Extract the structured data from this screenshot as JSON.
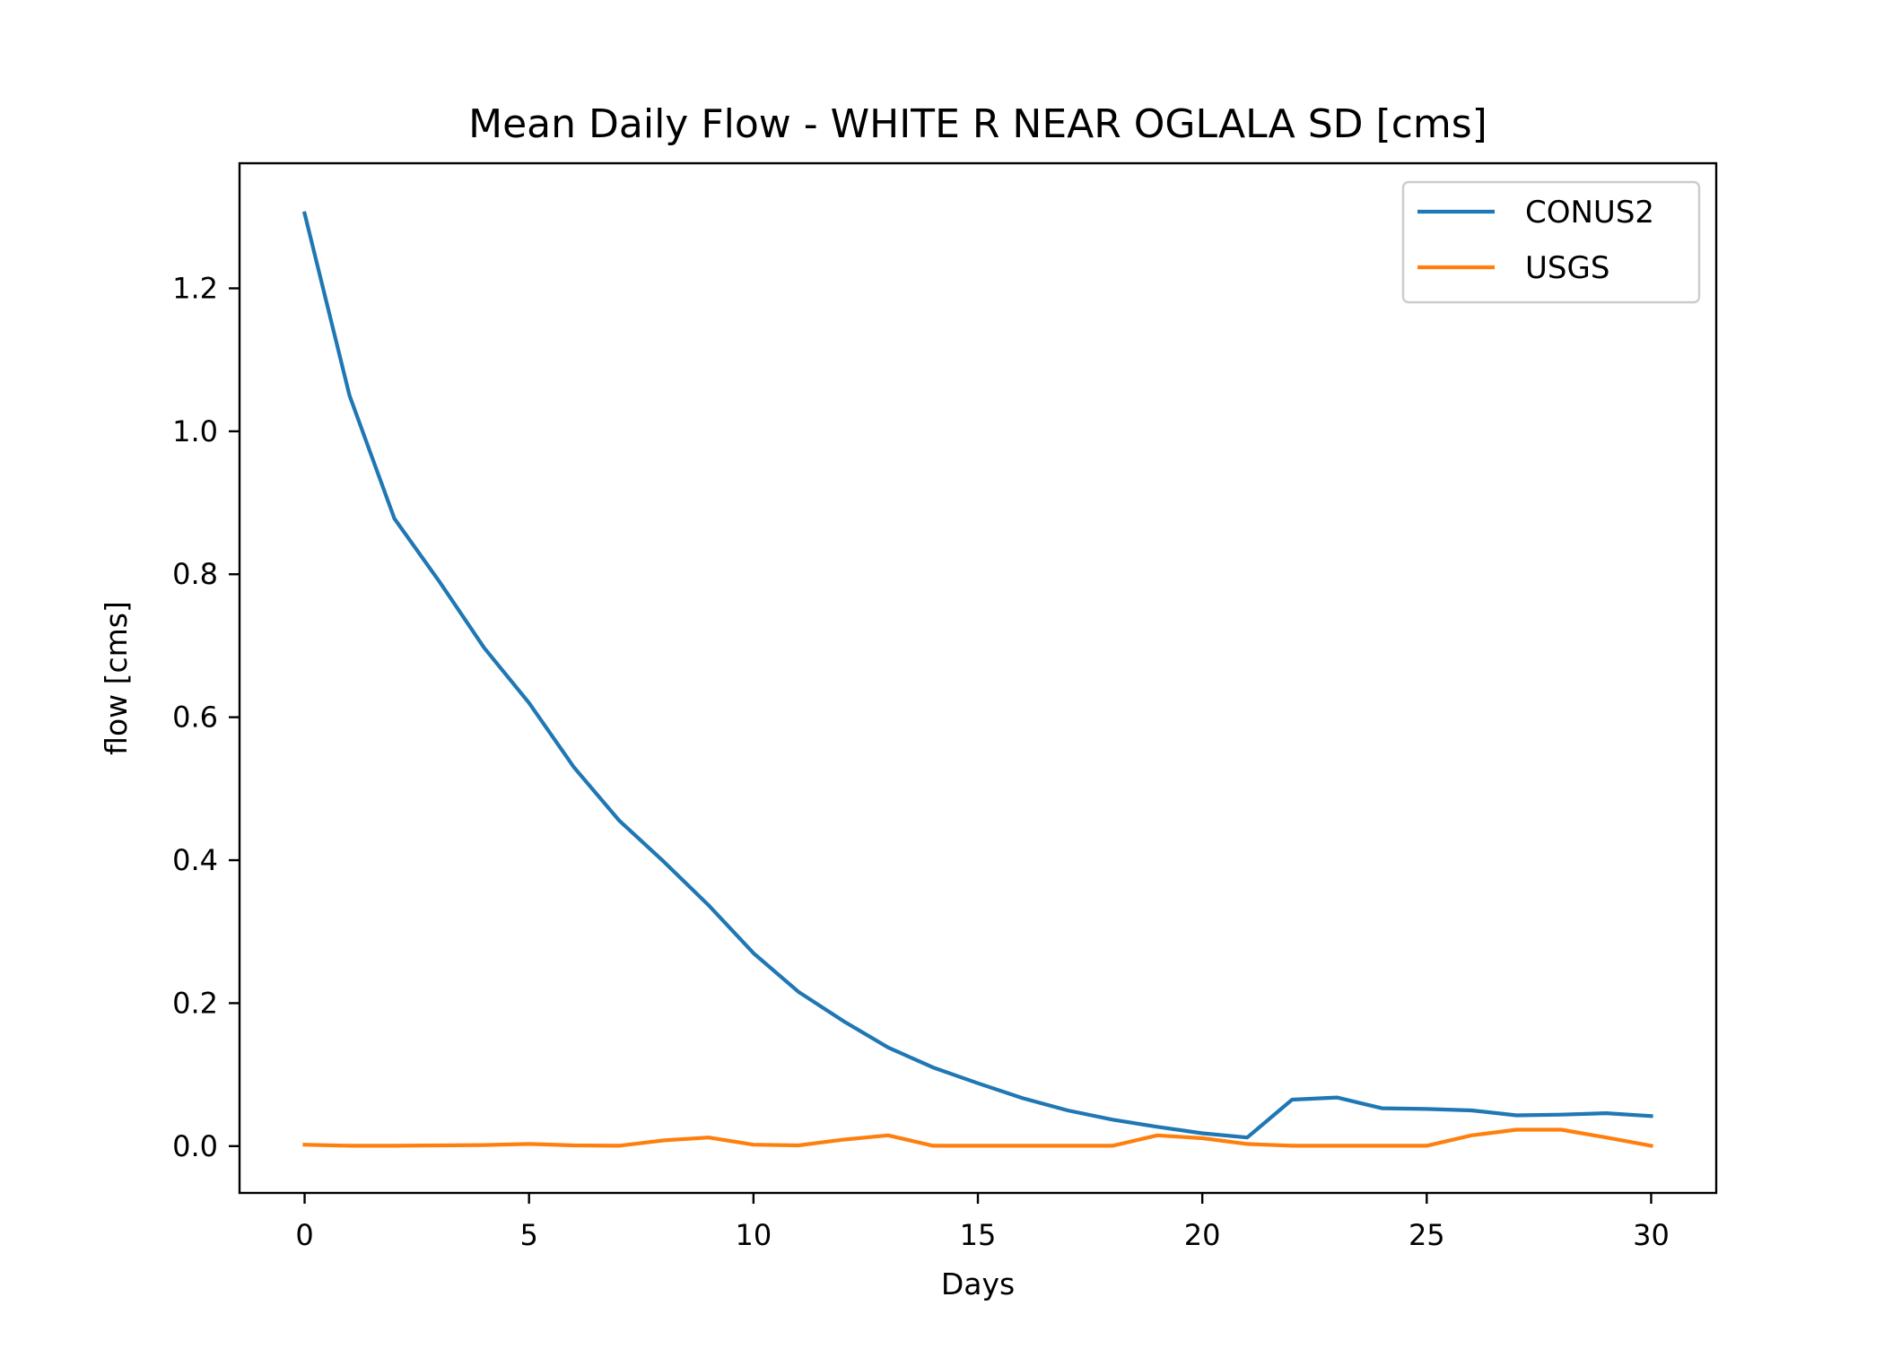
{
  "chart_data": {
    "type": "line",
    "title": "Mean Daily Flow - WHITE R NEAR OGLALA SD [cms]",
    "xlabel": "Days",
    "ylabel": "flow [cms]",
    "xlim": [
      -1.45,
      31.45
    ],
    "ylim": [
      -0.0655,
      1.375
    ],
    "xticks": [
      0,
      5,
      10,
      15,
      20,
      25,
      30
    ],
    "xtick_labels": [
      "0",
      "5",
      "10",
      "15",
      "20",
      "25",
      "30"
    ],
    "yticks": [
      0.0,
      0.2,
      0.4,
      0.6,
      0.8,
      1.0,
      1.2
    ],
    "ytick_labels": [
      "0.0",
      "0.2",
      "0.4",
      "0.6",
      "0.8",
      "1.0",
      "1.2"
    ],
    "grid": false,
    "legend": "top-right",
    "x": [
      0,
      1,
      2,
      3,
      4,
      5,
      6,
      7,
      8,
      9,
      10,
      11,
      12,
      13,
      14,
      15,
      16,
      17,
      18,
      19,
      20,
      21,
      22,
      23,
      24,
      25,
      26,
      27,
      28,
      29,
      30
    ],
    "series": [
      {
        "name": "CONUS2",
        "color": "#1f77b4",
        "values": [
          1.305,
          1.05,
          0.878,
          0.79,
          0.697,
          0.62,
          0.53,
          0.456,
          0.398,
          0.337,
          0.27,
          0.216,
          0.175,
          0.138,
          0.11,
          0.088,
          0.067,
          0.05,
          0.037,
          0.027,
          0.018,
          0.012,
          0.065,
          0.068,
          0.053,
          0.052,
          0.05,
          0.043,
          0.044,
          0.046,
          0.042
        ]
      },
      {
        "name": "USGS",
        "color": "#ff7f0e",
        "values": [
          0.002,
          0.0005,
          0.0005,
          0.001,
          0.0015,
          0.003,
          0.001,
          0.0005,
          0.008,
          0.012,
          0.002,
          0.001,
          0.009,
          0.015,
          0.0005,
          0.0005,
          0.0005,
          0.0005,
          0.0005,
          0.015,
          0.011,
          0.003,
          0.0005,
          0.0005,
          0.0005,
          0.0005,
          0.015,
          0.023,
          0.023,
          0.012,
          0.0005
        ]
      }
    ]
  }
}
